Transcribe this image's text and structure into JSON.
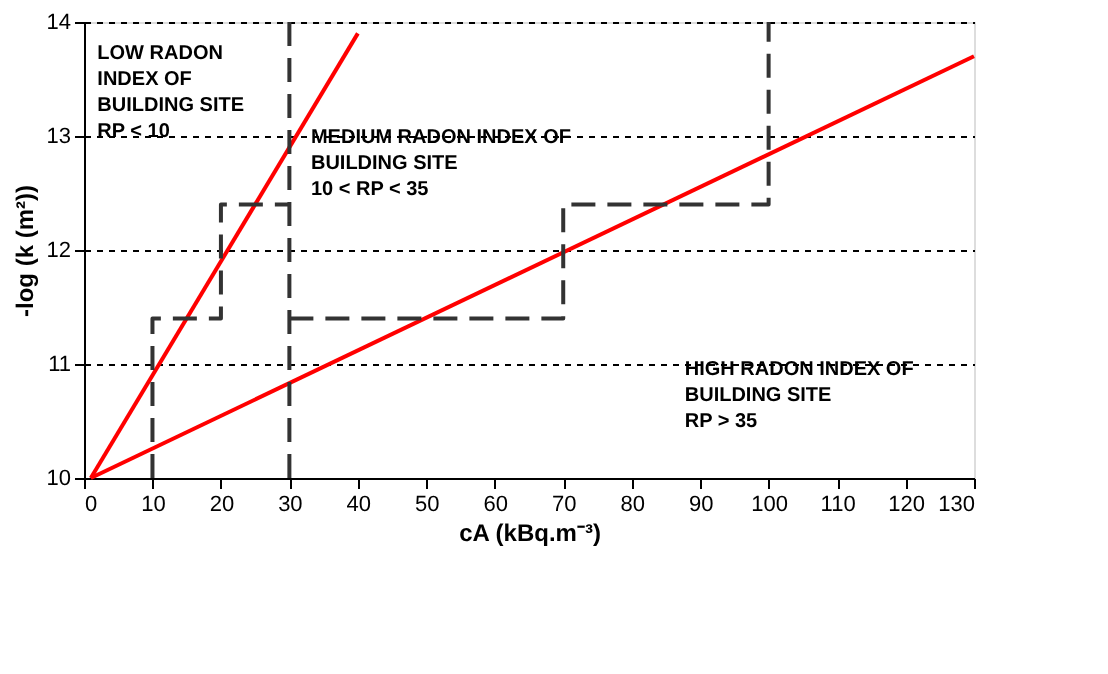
{
  "chart_data": {
    "type": "line",
    "xlabel": "cA (kBq.m⁻³)",
    "ylabel": "-log (k (m²))",
    "xlim": [
      0,
      130
    ],
    "xticks": [
      0,
      10,
      20,
      30,
      40,
      50,
      60,
      70,
      80,
      90,
      100,
      110,
      120,
      130
    ],
    "ylim": [
      10,
      14
    ],
    "yticks": [
      10,
      11,
      12,
      13,
      14
    ],
    "grid": "y",
    "marker": "none",
    "series": [
      {
        "color": "#ff0000",
        "x": [
          1,
          40
        ],
        "values": [
          10,
          13.9
        ],
        "line_style": "solid"
      },
      {
        "color": "#ff0000",
        "x": [
          1,
          130
        ],
        "values": [
          10,
          13.7
        ],
        "line_style": "solid"
      },
      {
        "color": "#333333",
        "x": [
          10,
          10,
          20,
          20,
          30
        ],
        "values": [
          10,
          11.4,
          11.4,
          12.4,
          12.4
        ],
        "line_style": "dashed"
      },
      {
        "color": "#333333",
        "x": [
          30,
          30
        ],
        "values": [
          10,
          14
        ],
        "line_style": "dashed"
      },
      {
        "color": "#333333",
        "x": [
          30,
          70,
          70,
          100,
          100
        ],
        "values": [
          11.4,
          11.4,
          12.4,
          12.4,
          14
        ],
        "line_style": "dashed"
      }
    ],
    "annotations": [
      "LOW RADON\nINDEX OF\nBUILDING SITE\nRP < 10",
      "MEDIUM RADON INDEX OF\nBUILDING SITE\n10 < RP < 35",
      "HIGH RADON INDEX OF\nBUILDING SITE\nRP > 35"
    ]
  }
}
